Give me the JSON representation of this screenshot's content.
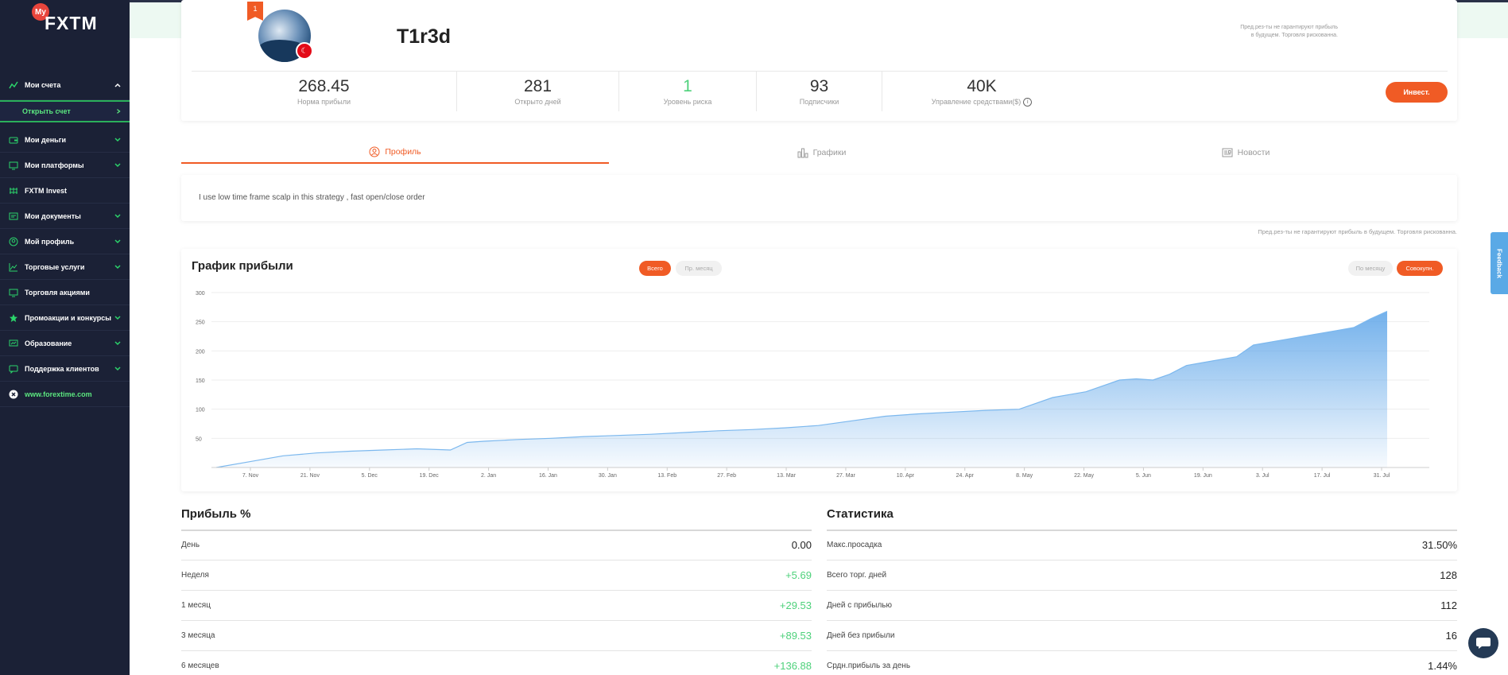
{
  "brand": {
    "badge": "My",
    "name": "FXTM"
  },
  "sidebar": {
    "accounts": "Мои счета",
    "open_account": "Открыть счет",
    "items": [
      {
        "label": "Мои деньги",
        "icon": "wallet-icon"
      },
      {
        "label": "Мои платформы",
        "icon": "monitor-icon"
      },
      {
        "label": "FXTM Invest",
        "icon": "invest-icon"
      },
      {
        "label": "Мои документы",
        "icon": "documents-icon"
      },
      {
        "label": "Мой профиль",
        "icon": "user-icon"
      },
      {
        "label": "Торговые услуги",
        "icon": "chart-line-icon"
      },
      {
        "label": "Торговля акциями",
        "icon": "monitor-icon"
      },
      {
        "label": "Промоакции и конкурсы",
        "icon": "star-icon"
      },
      {
        "label": "Образование",
        "icon": "education-icon"
      },
      {
        "label": "Поддержка клиентов",
        "icon": "support-icon"
      },
      {
        "label": "www.forextime.com",
        "icon": "close-circle-icon"
      }
    ]
  },
  "trader": {
    "rank": "1",
    "name": "T1r3d",
    "disclaimer": "Пред.рез-ты не гарантируют прибыль в будущем. Торговля рискованна."
  },
  "stats": [
    {
      "value": "268.45",
      "label": "Норма прибыли"
    },
    {
      "value": "281",
      "label": "Открыто дней"
    },
    {
      "value": "1",
      "label": "Уровень риска"
    },
    {
      "value": "93",
      "label": "Подписчики"
    },
    {
      "value": "40K",
      "label": "Управление средствами($)"
    }
  ],
  "invest_button": "Инвест.",
  "tabs": [
    "Профиль",
    "Графики",
    "Новости"
  ],
  "description": "I use low time frame scalp in this strategy , fast open/close order",
  "disclaimer_mid": "Пред.рез-ты не гарантируют прибыль в будущем. Торговля рискованна.",
  "chart": {
    "title": "График прибыли",
    "pill_all": "Всего",
    "pill_month": "Пр. месяц",
    "pill_per_month": "По месяцу",
    "pill_cumulative": "Совокупн."
  },
  "chart_data": {
    "type": "area",
    "title": "График прибыли",
    "xlabel": "",
    "ylabel": "",
    "ylim": [
      0,
      300
    ],
    "y_ticks": [
      50,
      100,
      150,
      200,
      250,
      300
    ],
    "x_ticks": [
      "7. Nov",
      "21. Nov",
      "5. Dec",
      "19. Dec",
      "2. Jan",
      "16. Jan",
      "30. Jan",
      "13. Feb",
      "27. Feb",
      "13. Mar",
      "27. Mar",
      "10. Apr",
      "24. Apr",
      "8. May",
      "22. May",
      "5. Jun",
      "19. Jun",
      "3. Jul",
      "17. Jul",
      "31. Jul"
    ],
    "series": [
      {
        "name": "Profit %",
        "x_days": [
          0,
          10,
          20,
          30,
          40,
          50,
          60,
          70,
          75,
          80,
          90,
          100,
          110,
          120,
          130,
          140,
          150,
          160,
          170,
          180,
          190,
          200,
          210,
          220,
          230,
          240,
          250,
          255,
          260,
          265,
          270,
          275,
          280,
          285,
          290,
          295,
          300,
          305,
          310,
          315,
          320,
          325,
          330,
          335,
          340,
          345,
          350
        ],
        "values": [
          0,
          10,
          20,
          25,
          28,
          30,
          32,
          30,
          43,
          45,
          48,
          50,
          53,
          55,
          57,
          60,
          63,
          65,
          68,
          72,
          80,
          88,
          92,
          95,
          98,
          100,
          120,
          125,
          130,
          140,
          150,
          152,
          150,
          160,
          175,
          180,
          185,
          190,
          210,
          215,
          220,
          225,
          230,
          235,
          240,
          255,
          268
        ]
      }
    ]
  },
  "profit": {
    "title": "Прибыль %",
    "rows": [
      {
        "label": "День",
        "value": "0.00"
      },
      {
        "label": "Неделя",
        "value": "+5.69"
      },
      {
        "label": "1 месяц",
        "value": "+29.53"
      },
      {
        "label": "3 месяца",
        "value": "+89.53"
      },
      {
        "label": "6 месяцев",
        "value": "+136.88"
      }
    ]
  },
  "statistics": {
    "title": "Статистика",
    "rows": [
      {
        "label": "Макс.просадка",
        "value": "31.50%"
      },
      {
        "label": "Всего торг. дней",
        "value": "128"
      },
      {
        "label": "Дней с прибылью",
        "value": "112"
      },
      {
        "label": "Дней без прибыли",
        "value": "16"
      },
      {
        "label": "Срдн.прибыль за день",
        "value": "1.44%"
      }
    ]
  },
  "feedback": "Feedback",
  "colors": {
    "accent": "#f05b25",
    "positive": "#4ed17b",
    "sidebar": "#1b2136",
    "sidebar_link": "#5be67f",
    "chart_fill": "#5aa3e8"
  }
}
